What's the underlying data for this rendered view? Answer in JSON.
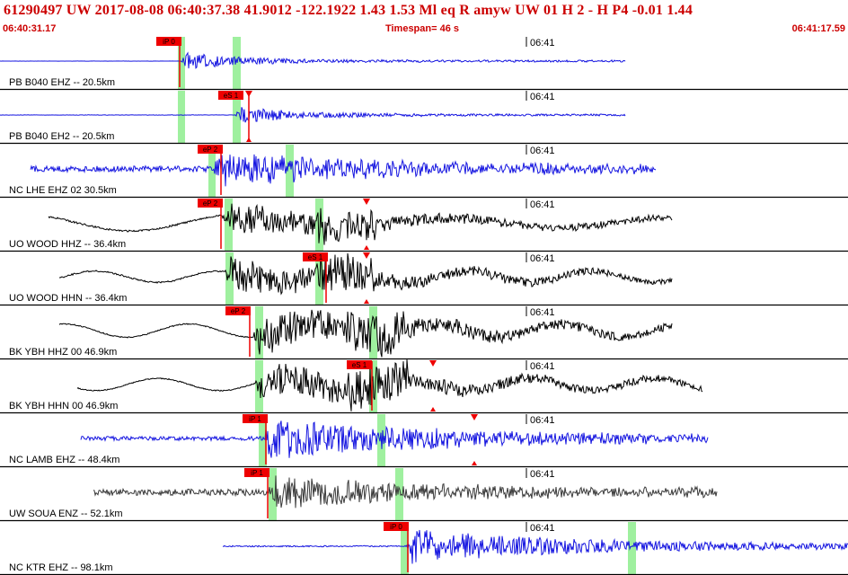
{
  "header": {
    "title": "61290497 UW 2017-08-08 06:40:37.38   41.9012 -122.1922   1.43  1.53 Ml  eq  R amyw    UW 01  H   2  -  H P4  -0.01  1.44",
    "start_time": "06:40:31.17",
    "timespan": "Timespan=  46 s",
    "end_time": "06:41:17.59"
  },
  "minute_label": "06:41",
  "colors": {
    "blue": "#1515e0",
    "black": "#000000",
    "gray": "#3a3a3a",
    "pick": "#ee0000",
    "window": "#9ff09f",
    "divider": "#000000"
  },
  "channels": [
    {
      "label": "PB B040 EHZ -- 20.5km",
      "color": "blue",
      "pick": "iP 0",
      "amp": 0.3,
      "noise": 0.01,
      "sig_start": 0.0,
      "sig_end": 1.0,
      "wave": "none"
    },
    {
      "label": "PB B040 EH2 -- 20.5km",
      "color": "blue",
      "pick": "eS 1",
      "amp": 0.3,
      "noise": 0.02,
      "sig_start": 0.0,
      "sig_end": 1.0,
      "wave": "none"
    },
    {
      "label": "NC LHE EHZ 02 30.5km",
      "color": "blue",
      "pick": "eP 2",
      "amp": 0.6,
      "noise": 0.18,
      "sig_start": 0.0,
      "sig_end": 1.0,
      "wave": "none"
    },
    {
      "label": "UO WOOD HHZ -- 36.4km",
      "color": "black",
      "pick": "eP 2",
      "amp": 0.55,
      "noise": 0.06,
      "sig_start": 0.0,
      "sig_end": 1.0,
      "wave": "long"
    },
    {
      "label": "UO WOOD HHN -- 36.4km",
      "color": "black",
      "pick": "eS 1",
      "amp": 0.6,
      "noise": 0.05,
      "sig_start": 0.0,
      "sig_end": 1.0,
      "wave": "mid"
    },
    {
      "label": "BK YBH HHZ 00 46.9km",
      "color": "black",
      "pick": "eP 2",
      "amp": 0.7,
      "noise": 0.03,
      "sig_start": 0.0,
      "sig_end": 1.0,
      "wave": "mid"
    },
    {
      "label": "BK YBH HHN 00 46.9km",
      "color": "black",
      "pick": "eS 1",
      "amp": 0.65,
      "noise": 0.03,
      "sig_start": 0.0,
      "sig_end": 1.0,
      "wave": "mid"
    },
    {
      "label": "NC LAMB EHZ -- 48.4km",
      "color": "blue",
      "pick": "iP 1",
      "amp": 0.75,
      "noise": 0.1,
      "sig_start": 0.0,
      "sig_end": 1.0,
      "wave": "none"
    },
    {
      "label": "UW SOUA ENZ -- 52.1km",
      "color": "gray",
      "pick": "iP 1",
      "amp": 0.55,
      "noise": 0.22,
      "sig_start": 0.0,
      "sig_end": 1.0,
      "wave": "none"
    },
    {
      "label": "NC KTR EHZ -- 98.1km",
      "color": "blue",
      "pick": "iP 0",
      "amp": 0.6,
      "noise": 0.04,
      "sig_start": 0.0,
      "sig_end": 1.0,
      "wave": "none"
    }
  ]
}
